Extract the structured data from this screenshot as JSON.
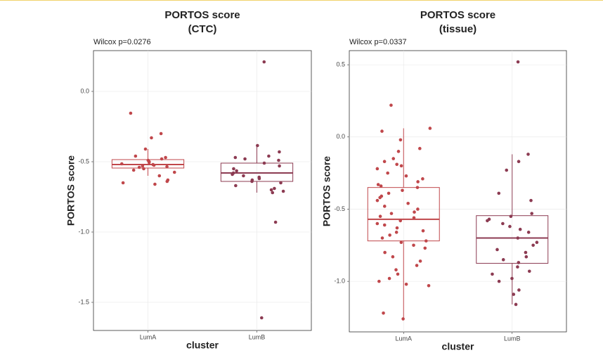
{
  "chart_data": [
    {
      "type": "box",
      "title": "PORTOS score",
      "subtitle": "(CTC)",
      "annotation": "Wilcox p=0.0276",
      "xlabel": "cluster",
      "ylabel": "PORTOS score",
      "categories": [
        "LumA",
        "LumB"
      ],
      "colors": [
        "#c0474b",
        "#8c3b52"
      ],
      "grid": true,
      "ylim": [
        -1.7,
        0.29
      ],
      "yticks": [
        {
          "value": 0,
          "label": "0.0"
        },
        -0.5,
        {
          "value": -1,
          "label": "-1.0"
        },
        -1.5
      ],
      "boxes": [
        {
          "whisker_low": -0.6,
          "q1": -0.545,
          "median": -0.52,
          "q3": -0.485,
          "whisker_high": -0.41
        },
        {
          "whisker_low": -0.72,
          "q1": -0.64,
          "median": -0.58,
          "q3": -0.51,
          "whisker_high": -0.385
        }
      ],
      "points": [
        [
          -0.155,
          -0.3,
          -0.33,
          -0.41,
          -0.46,
          -0.47,
          -0.48,
          -0.49,
          -0.5,
          -0.505,
          -0.515,
          -0.52,
          -0.525,
          -0.53,
          -0.535,
          -0.54,
          -0.55,
          -0.56,
          -0.575,
          -0.6,
          -0.63,
          -0.64,
          -0.65,
          -0.66
        ],
        [
          0.21,
          -0.385,
          -0.43,
          -0.46,
          -0.47,
          -0.48,
          -0.49,
          -0.51,
          -0.53,
          -0.55,
          -0.565,
          -0.58,
          -0.59,
          -0.6,
          -0.61,
          -0.62,
          -0.63,
          -0.64,
          -0.65,
          -0.67,
          -0.69,
          -0.7,
          -0.71,
          -0.72,
          -0.93,
          -1.61
        ]
      ]
    },
    {
      "type": "box",
      "title": "PORTOS score",
      "subtitle": "(tissue)",
      "annotation": "Wilcox p=0.0337",
      "xlabel": "cluster",
      "ylabel": "PORTOS score",
      "categories": [
        "LumA",
        "LumB"
      ],
      "colors": [
        "#c0474b",
        "#8c3b52"
      ],
      "grid": true,
      "ylim": [
        -1.35,
        0.598
      ],
      "yticks": [
        0.5,
        {
          "value": 0,
          "label": "0.0"
        },
        -0.5,
        {
          "value": -1,
          "label": "-1.0"
        }
      ],
      "boxes": [
        {
          "whisker_low": -1.26,
          "q1": -0.72,
          "median": -0.57,
          "q3": -0.35,
          "whisker_high": 0.06
        },
        {
          "whisker_low": -1.16,
          "q1": -0.875,
          "median": -0.7,
          "q3": -0.545,
          "whisker_high": -0.12
        }
      ],
      "points": [
        [
          0.22,
          0.06,
          0.04,
          -0.02,
          -0.08,
          -0.1,
          -0.15,
          -0.17,
          -0.19,
          -0.2,
          -0.22,
          -0.25,
          -0.27,
          -0.29,
          -0.31,
          -0.33,
          -0.34,
          -0.35,
          -0.37,
          -0.39,
          -0.41,
          -0.42,
          -0.44,
          -0.46,
          -0.48,
          -0.5,
          -0.52,
          -0.53,
          -0.55,
          -0.56,
          -0.58,
          -0.6,
          -0.61,
          -0.63,
          -0.65,
          -0.66,
          -0.68,
          -0.7,
          -0.72,
          -0.73,
          -0.75,
          -0.77,
          -0.8,
          -0.83,
          -0.86,
          -0.89,
          -0.92,
          -0.95,
          -0.98,
          -1.0,
          -1.02,
          -1.03,
          -1.22,
          -1.26
        ],
        [
          0.52,
          -0.12,
          -0.17,
          -0.23,
          -0.39,
          -0.44,
          -0.53,
          -0.55,
          -0.57,
          -0.58,
          -0.6,
          -0.62,
          -0.64,
          -0.66,
          -0.7,
          -0.73,
          -0.75,
          -0.78,
          -0.8,
          -0.83,
          -0.85,
          -0.87,
          -0.9,
          -0.93,
          -0.95,
          -0.98,
          -1.0,
          -1.06,
          -1.09,
          -1.16
        ]
      ]
    }
  ]
}
